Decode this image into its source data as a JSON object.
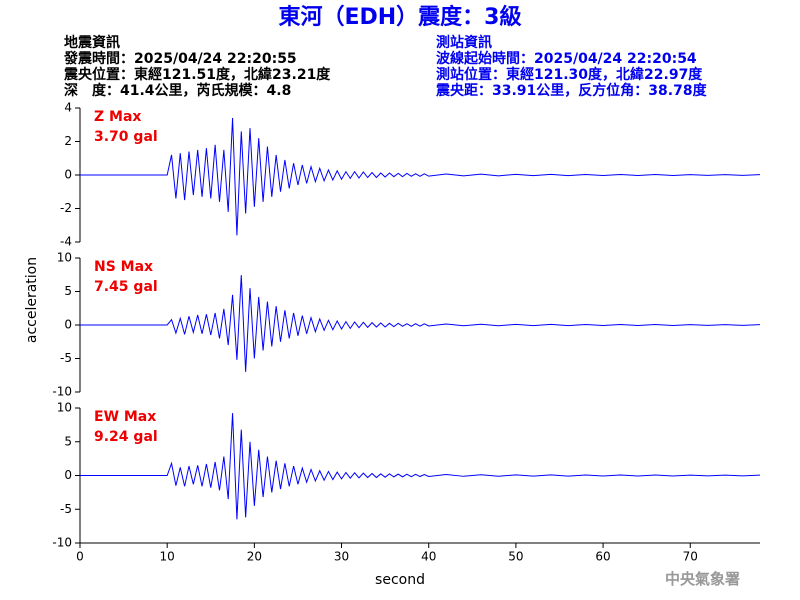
{
  "header": {
    "title": "東河（EDH）震度：3級",
    "left": [
      "地震資訊",
      "發震時間：2025/04/24 22:20:55",
      "震央位置：東經121.51度，北緯23.21度",
      "深　度：41.4公里，芮氏規模：4.8"
    ],
    "right": [
      "測站資訊",
      "波線起始時間：2025/04/24 22:20:54",
      "測站位置：東經121.30度，北緯22.97度",
      "震央距：33.91公里，反方位角：38.78度"
    ],
    "watermark": "中央氣象署"
  },
  "chart_data": [
    {
      "type": "line",
      "label": "Z Max",
      "max_label": "3.70 gal",
      "color": "#0000ff",
      "xlim": [
        0,
        78
      ],
      "ylim": [
        -4,
        4
      ],
      "yticks": [
        -4,
        -2,
        0,
        2,
        4
      ],
      "x": [
        0,
        10,
        10.5,
        11,
        11.5,
        12,
        12.5,
        13,
        13.5,
        14,
        14.5,
        15,
        15.5,
        16,
        16.5,
        17,
        17.5,
        18,
        18.5,
        19,
        19.5,
        20,
        20.5,
        21,
        21.5,
        22,
        22.5,
        23,
        23.5,
        24,
        24.5,
        25,
        25.5,
        26,
        26.5,
        27,
        27.5,
        28,
        28.5,
        29,
        29.5,
        30,
        30.5,
        31,
        31.5,
        32,
        32.5,
        33,
        33.5,
        34,
        34.5,
        35,
        35.5,
        36,
        36.5,
        37,
        37.5,
        38,
        38.5,
        39,
        39.5,
        40,
        42,
        44,
        46,
        48,
        50,
        52,
        54,
        56,
        58,
        60,
        62,
        64,
        66,
        68,
        70,
        72,
        74,
        76,
        78
      ],
      "values": [
        0,
        0,
        1.2,
        -1.4,
        1.3,
        -1.5,
        1.4,
        -1.2,
        1.5,
        -1.3,
        1.6,
        -1.4,
        1.8,
        -1.6,
        1.5,
        -2.2,
        3.4,
        -3.6,
        2.6,
        -2.3,
        2.8,
        -1.9,
        2.2,
        -1.6,
        1.7,
        -1.3,
        1.2,
        -1.0,
        0.9,
        -0.8,
        0.7,
        -0.6,
        0.6,
        -0.5,
        0.5,
        -0.4,
        0.4,
        -0.35,
        0.3,
        -0.3,
        0.25,
        -0.25,
        0.2,
        -0.2,
        0.2,
        -0.18,
        0.18,
        -0.15,
        0.15,
        -0.15,
        0.12,
        -0.12,
        0.12,
        -0.1,
        0.1,
        -0.1,
        0.1,
        -0.08,
        0.08,
        -0.08,
        0.07,
        -0.07,
        0.06,
        -0.05,
        0.05,
        -0.05,
        0.04,
        -0.04,
        0.04,
        -0.04,
        0.03,
        -0.03,
        0.03,
        -0.03,
        0.03,
        -0.03,
        0.02,
        -0.02,
        0.02,
        -0.02,
        0.02
      ]
    },
    {
      "type": "line",
      "label": "NS Max",
      "max_label": "7.45 gal",
      "color": "#0000ff",
      "ylabel": "acceleration",
      "xlim": [
        0,
        78
      ],
      "ylim": [
        -10,
        10
      ],
      "yticks": [
        -10,
        -5,
        0,
        5,
        10
      ],
      "x": [
        0,
        10,
        10.5,
        11,
        11.5,
        12,
        12.5,
        13,
        13.5,
        14,
        14.5,
        15,
        15.5,
        16,
        16.5,
        17,
        17.5,
        18,
        18.5,
        19,
        19.5,
        20,
        20.5,
        21,
        21.5,
        22,
        22.5,
        23,
        23.5,
        24,
        24.5,
        25,
        25.5,
        26,
        26.5,
        27,
        27.5,
        28,
        28.5,
        29,
        29.5,
        30,
        30.5,
        31,
        31.5,
        32,
        32.5,
        33,
        33.5,
        34,
        34.5,
        35,
        35.5,
        36,
        36.5,
        37,
        37.5,
        38,
        38.5,
        39,
        39.5,
        40,
        42,
        44,
        46,
        48,
        50,
        52,
        54,
        56,
        58,
        60,
        62,
        64,
        66,
        68,
        70,
        72,
        74,
        76,
        78
      ],
      "values": [
        0,
        0,
        0.8,
        -1.2,
        1.0,
        -1.4,
        1.3,
        -1.1,
        1.5,
        -1.3,
        1.6,
        -1.5,
        1.8,
        -2.0,
        2.4,
        -3.0,
        4.5,
        -5.2,
        7.45,
        -7.0,
        5.5,
        -5.0,
        4.2,
        -3.8,
        3.5,
        -3.2,
        2.8,
        -2.5,
        2.2,
        -2.0,
        1.8,
        -1.6,
        1.4,
        -1.3,
        1.1,
        -1.0,
        0.9,
        -0.8,
        0.7,
        -0.7,
        0.6,
        -0.6,
        0.5,
        -0.5,
        0.45,
        -0.4,
        0.4,
        -0.35,
        0.35,
        -0.3,
        0.3,
        -0.3,
        0.25,
        -0.25,
        0.25,
        -0.2,
        0.2,
        -0.2,
        0.2,
        -0.18,
        0.18,
        -0.15,
        0.15,
        -0.12,
        0.12,
        -0.12,
        0.1,
        -0.1,
        0.1,
        -0.1,
        0.08,
        -0.08,
        0.08,
        -0.08,
        0.07,
        -0.07,
        0.06,
        -0.06,
        0.06,
        -0.05,
        0.05
      ]
    },
    {
      "type": "line",
      "label": "EW Max",
      "max_label": "9.24 gal",
      "color": "#0000ff",
      "xlabel": "second",
      "xlim": [
        0,
        78
      ],
      "xticks": [
        0,
        10,
        20,
        30,
        40,
        50,
        60,
        70
      ],
      "ylim": [
        -10,
        10
      ],
      "yticks": [
        -10,
        -5,
        0,
        5,
        10
      ],
      "x": [
        0,
        10,
        10.5,
        11,
        11.5,
        12,
        12.5,
        13,
        13.5,
        14,
        14.5,
        15,
        15.5,
        16,
        16.5,
        17,
        17.5,
        18,
        18.5,
        19,
        19.5,
        20,
        20.5,
        21,
        21.5,
        22,
        22.5,
        23,
        23.5,
        24,
        24.5,
        25,
        25.5,
        26,
        26.5,
        27,
        27.5,
        28,
        28.5,
        29,
        29.5,
        30,
        30.5,
        31,
        31.5,
        32,
        32.5,
        33,
        33.5,
        34,
        34.5,
        35,
        35.5,
        36,
        36.5,
        37,
        37.5,
        38,
        38.5,
        39,
        39.5,
        40,
        42,
        44,
        46,
        48,
        50,
        52,
        54,
        56,
        58,
        60,
        62,
        64,
        66,
        68,
        70,
        72,
        74,
        76,
        78
      ],
      "values": [
        0,
        0,
        1.8,
        -1.5,
        1.2,
        -1.6,
        1.4,
        -1.3,
        1.5,
        -1.6,
        1.7,
        -1.8,
        2.0,
        -2.2,
        2.8,
        -3.5,
        9.24,
        -6.5,
        6.8,
        -6.2,
        5.0,
        -4.5,
        3.8,
        -3.2,
        2.8,
        -2.5,
        2.2,
        -2.0,
        1.8,
        -1.6,
        1.4,
        -1.3,
        1.1,
        -1.0,
        0.9,
        -0.8,
        0.7,
        -0.7,
        0.6,
        -0.6,
        0.5,
        -0.5,
        0.45,
        -0.4,
        0.4,
        -0.35,
        0.35,
        -0.3,
        0.3,
        -0.3,
        0.25,
        -0.25,
        0.25,
        -0.2,
        0.2,
        -0.2,
        0.2,
        -0.18,
        0.18,
        -0.15,
        0.15,
        -0.15,
        0.15,
        -0.12,
        0.12,
        -0.12,
        0.1,
        -0.1,
        0.1,
        -0.1,
        0.08,
        -0.08,
        0.08,
        -0.08,
        0.07,
        -0.07,
        0.06,
        -0.06,
        0.06,
        -0.05,
        0.05
      ]
    }
  ]
}
